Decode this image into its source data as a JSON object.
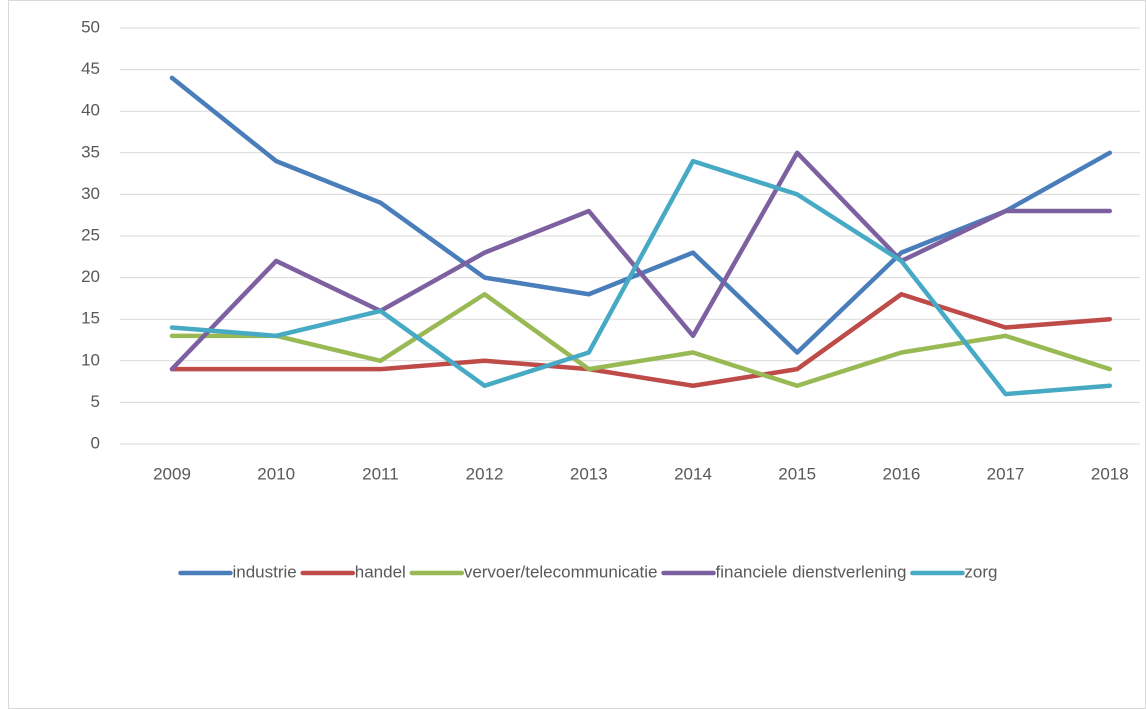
{
  "chart_data": {
    "type": "line",
    "categories": [
      "2009",
      "2010",
      "2011",
      "2012",
      "2013",
      "2014",
      "2015",
      "2016",
      "2017",
      "2018"
    ],
    "series": [
      {
        "name": "industrie",
        "color": "#4a7ebb",
        "values": [
          44,
          34,
          29,
          20,
          18,
          23,
          11,
          23,
          28,
          35
        ]
      },
      {
        "name": "handel",
        "color": "#be4b48",
        "values": [
          9,
          9,
          9,
          10,
          9,
          7,
          9,
          18,
          14,
          15
        ]
      },
      {
        "name": "vervoer/telecommunicatie",
        "color": "#98b954",
        "values": [
          13,
          13,
          10,
          18,
          9,
          11,
          7,
          11,
          13,
          9
        ]
      },
      {
        "name": "financiele dienstverlening",
        "color": "#7d60a0",
        "values": [
          9,
          22,
          16,
          23,
          28,
          13,
          35,
          22,
          28,
          28
        ]
      },
      {
        "name": "zorg",
        "color": "#46aac5",
        "values": [
          14,
          13,
          16,
          7,
          11,
          34,
          30,
          22,
          6,
          7
        ]
      }
    ],
    "ylim": [
      0,
      50
    ],
    "yticks": [
      0,
      5,
      10,
      15,
      20,
      25,
      30,
      35,
      40,
      45,
      50
    ],
    "grid": true,
    "legend": "bottom"
  }
}
